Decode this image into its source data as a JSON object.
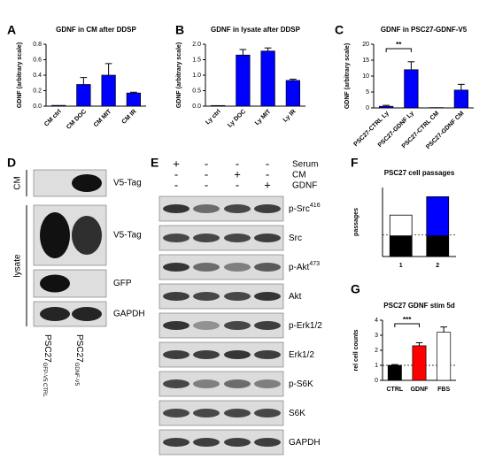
{
  "chart_data": [
    {
      "type": "bar",
      "panel": "A",
      "title": "GDNF in CM after  DDSP",
      "ylabel": "GDNF (arbitrary scale)",
      "categories": [
        "CM ctrl",
        "CM DOC",
        "CM MIT",
        "CM IR"
      ],
      "values": [
        0.01,
        0.28,
        0.4,
        0.17
      ],
      "errors": [
        0.0,
        0.09,
        0.15,
        0.01
      ],
      "color": "#0000ff",
      "ylim": [
        0,
        0.8
      ],
      "yticks": [
        {
          "value": 0,
          "label": "0.0"
        },
        {
          "value": 0.2,
          "label": "0.2"
        },
        {
          "value": 0.4,
          "label": "0.4"
        },
        {
          "value": 0.6,
          "label": "0.6"
        },
        {
          "value": 0.8,
          "label": "0.8"
        }
      ]
    },
    {
      "type": "bar",
      "panel": "B",
      "title": "GDNF in lysate after  DDSP",
      "ylabel": "GDNF (arbitrary scale)",
      "categories": [
        "Ly ctrl",
        "Ly DOC",
        "Ly MIT",
        "Ly IR"
      ],
      "values": [
        0.02,
        1.65,
        1.78,
        0.83
      ],
      "errors": [
        0.0,
        0.18,
        0.1,
        0.04
      ],
      "color": "#0000ff",
      "ylim": [
        0,
        2.0
      ],
      "yticks": [
        {
          "value": 0,
          "label": "0.0"
        },
        {
          "value": 0.5,
          "label": "0.5"
        },
        {
          "value": 1,
          "label": "1.0"
        },
        {
          "value": 1.5,
          "label": "1.5"
        },
        {
          "value": 2,
          "label": "2.0"
        }
      ]
    },
    {
      "type": "bar",
      "panel": "C",
      "title": "GDNF in PSC27-GDNF-V5",
      "ylabel": "GDNF (arbitrary scale)",
      "categories": [
        "PSC27-CTRL Ly",
        "PSC27-GDNF Ly",
        "PSC27-CTRL CM",
        "PSC27-GDNF CM"
      ],
      "values": [
        0.5,
        12,
        0.1,
        5.6
      ],
      "errors": [
        0.3,
        2.5,
        0.0,
        1.8
      ],
      "color": "#0000ff",
      "ylim": [
        0,
        20
      ],
      "yticks": [
        0,
        5,
        10,
        15,
        20
      ],
      "annotation": "**"
    },
    {
      "type": "stacked_bar",
      "panel": "F",
      "title": "PSC27 cell passages",
      "ylabel": "passages",
      "categories": [
        "1",
        "2"
      ],
      "ylim": [
        0,
        30
      ],
      "reference_line": 9.5,
      "series": [
        {
          "values": [
            9,
            9
          ],
          "colors": [
            "#000000",
            "#000000"
          ]
        },
        {
          "values": [
            9,
            17
          ],
          "colors": [
            "#ffffff",
            "#0000ff"
          ]
        }
      ]
    },
    {
      "type": "bar",
      "panel": "G",
      "title": "PSC27 GDNF stim 5d",
      "ylabel": "rel cell counts",
      "categories": [
        "CTRL",
        "GDNF",
        "FBS"
      ],
      "values": [
        1.0,
        2.3,
        3.2
      ],
      "errors": [
        0.05,
        0.2,
        0.35
      ],
      "colors": [
        "#000000",
        "#ff0000",
        "#ffffff"
      ],
      "ylim": [
        0,
        4
      ],
      "yticks": [
        0,
        1,
        2,
        3,
        4
      ],
      "reference_line": 1,
      "annotation": "***"
    }
  ],
  "blot_d": {
    "panel": "D",
    "groups": [
      "CM",
      "lysate"
    ],
    "rows": [
      "V5-Tag",
      "V5-Tag",
      "GFP",
      "GAPDH"
    ],
    "lanes": [
      {
        "main": "PSC27",
        "sub": "GFP-V5 CTRL"
      },
      {
        "main": "PSC27",
        "sub": "GDNF-V5"
      }
    ]
  },
  "blot_e": {
    "panel": "E",
    "conditions": [
      {
        "name": "Serum",
        "signs": [
          "+",
          "-",
          "-",
          "-"
        ]
      },
      {
        "name": "CM",
        "signs": [
          "-",
          "-",
          "+",
          "-"
        ]
      },
      {
        "name": "GDNF",
        "signs": [
          "-",
          "-",
          "-",
          "+"
        ]
      }
    ],
    "rows": [
      {
        "label": "p-Src",
        "sup": "416"
      },
      {
        "label": "Src"
      },
      {
        "label": "p-Akt",
        "sup": "473"
      },
      {
        "label": "Akt"
      },
      {
        "label": "p-Erk1/2"
      },
      {
        "label": "Erk1/2"
      },
      {
        "label": "p-S6K"
      },
      {
        "label": "S6K"
      },
      {
        "label": "GAPDH"
      }
    ]
  }
}
